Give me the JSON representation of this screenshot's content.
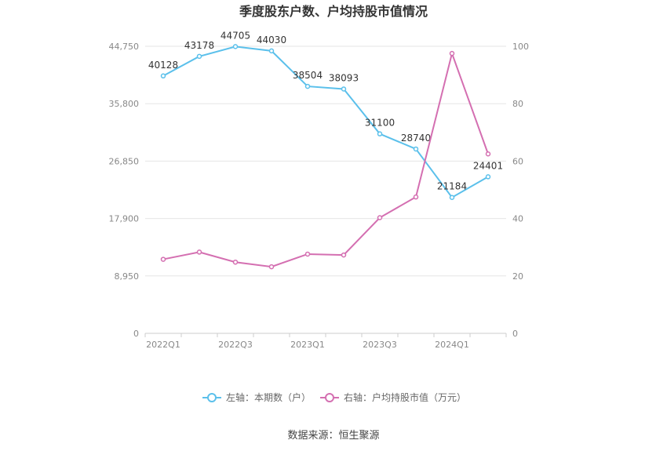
{
  "chart_data": {
    "type": "line",
    "title": "季度股东户数、户均持股市值情况",
    "categories": [
      "2022Q1",
      "2022Q2",
      "2022Q3",
      "2022Q4",
      "2023Q1",
      "2023Q2",
      "2023Q3",
      "2023Q4",
      "2024Q1",
      "2024Q2"
    ],
    "x_tick_labels": [
      "2022Q1",
      "2022Q3",
      "2023Q1",
      "2023Q3",
      "2024Q1"
    ],
    "y_left_ticks": [
      "0",
      "8,950",
      "17,900",
      "26,850",
      "35,800",
      "44,750"
    ],
    "y_right_ticks": [
      "0",
      "20",
      "40",
      "60",
      "80",
      "100"
    ],
    "y_left_range": [
      0,
      44750
    ],
    "y_right_range": [
      0,
      100
    ],
    "grid": true,
    "legend_position": "bottom",
    "series": [
      {
        "name": "左轴：本期数（户）",
        "axis": "left",
        "color": "#5bc0eb",
        "values": [
          40128,
          43178,
          44705,
          44030,
          38504,
          38093,
          31100,
          28740,
          21184,
          24401
        ],
        "data_labels": [
          "40128",
          "43178",
          "44705",
          "44030",
          "38504",
          "38093",
          "31100",
          "28740",
          "21184",
          "24401"
        ]
      },
      {
        "name": "右轴：户均持股市值（万元）",
        "axis": "right",
        "color": "#d46fb1",
        "values": [
          25.8,
          28.3,
          24.8,
          23.2,
          27.6,
          27.3,
          40.3,
          47.5,
          97.5,
          62.5
        ]
      }
    ],
    "source": "数据来源：恒生聚源"
  }
}
